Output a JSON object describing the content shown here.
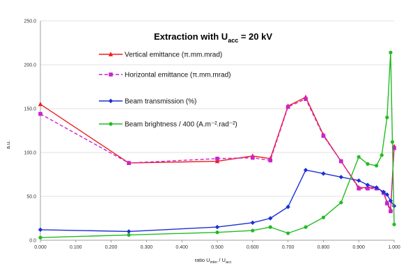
{
  "chart_data": {
    "type": "line",
    "title_main": "Extraction with U",
    "title_sub": "acc",
    "title_end": " = 20 kV",
    "xlabel_main": "ratio U",
    "xlabel_sub1": "inter",
    "xlabel_mid": " / U",
    "xlabel_sub2": "acc",
    "ylabel": "a.u.",
    "xlim": [
      0,
      1
    ],
    "ylim": [
      0,
      250
    ],
    "x_ticks": [
      "0.000",
      "0.100",
      "0.200",
      "0.300",
      "0.400",
      "0.500",
      "0.600",
      "0.700",
      "0.800",
      "0.900",
      "1.000"
    ],
    "y_ticks": [
      "0.0",
      "50.0",
      "100.0",
      "150.0",
      "200.0",
      "250.0"
    ],
    "grid": "horizontal",
    "legend_position": "top-left-inside",
    "series": [
      {
        "name": "Vertical emittance (π.mm.mrad)",
        "color": "#ee1c1c",
        "marker": "triangle",
        "dash": "solid",
        "x": [
          0.0,
          0.25,
          0.5,
          0.6,
          0.65,
          0.7,
          0.75,
          0.8,
          0.85,
          0.9,
          0.925,
          0.95,
          0.97,
          0.98,
          0.99,
          1.0
        ],
        "y": [
          155,
          88,
          90,
          96,
          93,
          153,
          163,
          120,
          90,
          60,
          60,
          60,
          55,
          43,
          35,
          107
        ]
      },
      {
        "name": "Horizontal emittance (π.mm.mrad)",
        "color": "#cc22cc",
        "marker": "square",
        "dash": "dashed",
        "x": [
          0.0,
          0.25,
          0.5,
          0.6,
          0.65,
          0.7,
          0.75,
          0.8,
          0.85,
          0.9,
          0.925,
          0.95,
          0.97,
          0.98,
          0.99,
          1.0
        ],
        "y": [
          144,
          88,
          93,
          94,
          91,
          152,
          161,
          119,
          90,
          59,
          59,
          59,
          54,
          42,
          33,
          105
        ]
      },
      {
        "name": "Beam transmission (%)",
        "color": "#1a2fd6",
        "marker": "diamond",
        "dash": "solid",
        "x": [
          0.0,
          0.25,
          0.5,
          0.6,
          0.65,
          0.7,
          0.75,
          0.8,
          0.85,
          0.9,
          0.925,
          0.95,
          0.97,
          0.98,
          0.99,
          1.0
        ],
        "y": [
          12,
          10,
          15,
          20,
          25,
          38,
          80,
          76,
          72,
          68,
          63,
          60,
          55,
          52,
          45,
          39
        ]
      },
      {
        "name": "Beam brightness / 400 (A.m⁻².rad⁻²)",
        "color": "#22bb22",
        "marker": "circle",
        "dash": "solid",
        "x": [
          0.0,
          0.25,
          0.5,
          0.6,
          0.65,
          0.7,
          0.75,
          0.8,
          0.85,
          0.9,
          0.925,
          0.95,
          0.965,
          0.98,
          0.99,
          0.995,
          1.0
        ],
        "y": [
          3,
          6,
          9,
          11,
          15,
          8,
          15,
          26,
          43,
          95,
          87,
          85,
          97,
          140,
          214,
          112,
          18
        ]
      }
    ]
  }
}
